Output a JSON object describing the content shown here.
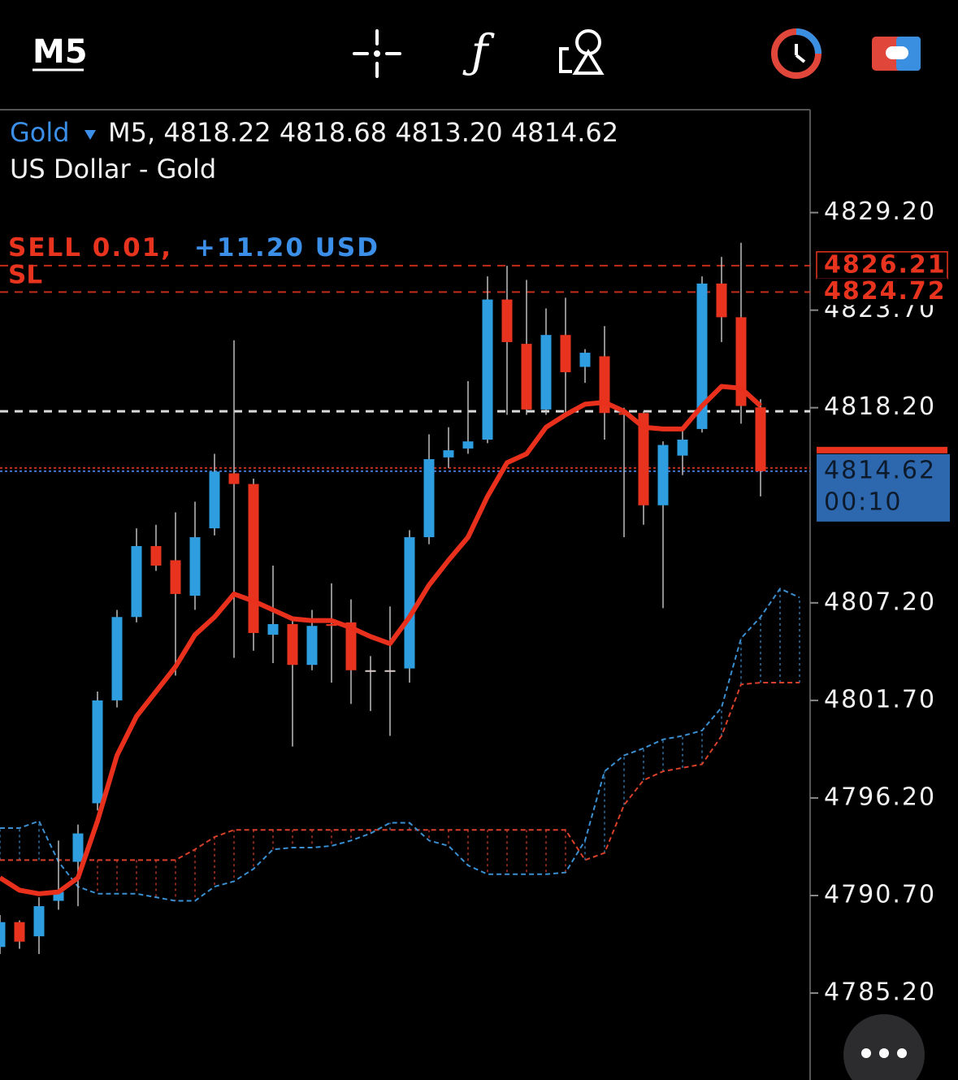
{
  "toolbar": {
    "timeframe": "M5"
  },
  "chart_data": {
    "type": "candlestick",
    "title": "Gold",
    "subtitle": "M5, 4818.22 4818.68 4813.20 4814.62",
    "description": "US Dollar - Gold",
    "categories": [
      null,
      null,
      null,
      null,
      null,
      null,
      null,
      null,
      null,
      null,
      null,
      null,
      null,
      null,
      null,
      null,
      null,
      null,
      null,
      null,
      null,
      null,
      null,
      null,
      null,
      null,
      null,
      null,
      null,
      null,
      null,
      null,
      null,
      null,
      null,
      null,
      null,
      null,
      null,
      null,
      null,
      null
    ],
    "open": [
      4787.8,
      4789.2,
      4788.4,
      4790.4,
      4792.6,
      4795.9,
      4801.7,
      4806.4,
      4810.4,
      4809.6,
      4807.6,
      4811.4,
      4814.5,
      4813.9,
      4805.4,
      4806.0,
      4803.7,
      4806.0,
      4806.1,
      4803.4,
      4803.4,
      4803.5,
      4810.9,
      4815.4,
      4815.9,
      4816.4,
      4824.3,
      4821.8,
      4818.1,
      4822.3,
      4820.5,
      4821.1,
      4817.9,
      4817.9,
      4812.7,
      4815.5,
      4817.0,
      4825.2,
      4823.3,
      4818.22,
      null,
      null
    ],
    "high": [
      4789.6,
      4789.3,
      4790.6,
      4793.8,
      4794.7,
      4802.2,
      4806.8,
      4811.4,
      4811.6,
      4812.3,
      4812.9,
      4815.6,
      4822.0,
      4814.2,
      4809.3,
      4806.4,
      4806.8,
      4808.3,
      4807.4,
      4804.2,
      4807.0,
      4811.3,
      4816.7,
      4817.1,
      4819.7,
      4825.6,
      4826.2,
      4825.4,
      4823.8,
      4824.4,
      4821.5,
      4822.8,
      4818.2,
      4818.0,
      4816.3,
      4816.9,
      4825.6,
      4826.7,
      4827.5,
      4818.68,
      null,
      null
    ],
    "low": [
      4787.4,
      4787.7,
      4787.4,
      4789.9,
      4790.1,
      4795.5,
      4801.3,
      4806.1,
      4809.0,
      4803.1,
      4806.8,
      4811.0,
      4804.1,
      4804.5,
      4803.8,
      4799.1,
      4803.4,
      4802.7,
      4801.5,
      4801.1,
      4799.7,
      4802.7,
      4810.5,
      4814.8,
      4815.6,
      4816.2,
      4817.8,
      4817.8,
      4817.8,
      4817.8,
      4819.6,
      4816.4,
      4810.9,
      4811.6,
      4806.9,
      4814.4,
      4816.8,
      4821.9,
      4817.3,
      4813.2,
      null,
      null
    ],
    "close": [
      4789.2,
      4788.1,
      4790.1,
      4790.9,
      4794.2,
      4801.7,
      4806.4,
      4810.4,
      4809.3,
      4807.7,
      4810.9,
      4814.6,
      4813.9,
      4805.5,
      4806.0,
      4803.7,
      4805.9,
      4805.9,
      4803.4,
      4803.4,
      4803.4,
      4810.9,
      4815.3,
      4815.8,
      4816.3,
      4824.3,
      4821.9,
      4818.1,
      4822.3,
      4820.2,
      4821.3,
      4817.9,
      4817.8,
      4812.7,
      4816.1,
      4816.4,
      4825.2,
      4823.3,
      4818.3,
      4814.62,
      null,
      null
    ],
    "up_color": "#2e9ee0",
    "down_color": "#e8341f",
    "flat_color": "#d8c8c8",
    "overlays": [
      {
        "color": "#e8301c",
        "width": 6,
        "dash": false,
        "values": [
          4791.7,
          4791.0,
          4790.8,
          4790.9,
          4791.7,
          4794.9,
          4798.6,
          4800.8,
          4802.2,
          4803.6,
          4805.4,
          4806.4,
          4807.7,
          4807.3,
          4806.8,
          4806.3,
          4806.2,
          4806.2,
          4805.8,
          4805.3,
          4804.9,
          4806.4,
          4808.2,
          4809.6,
          4810.9,
          4813.2,
          4815.1,
          4815.6,
          4817.1,
          4817.8,
          4818.4,
          4818.5,
          4818.0,
          4817.1,
          4817.0,
          4817.0,
          4818.3,
          4819.4,
          4819.3,
          4818.3,
          null,
          null
        ]
      },
      {
        "color": "#d9402a",
        "width": 2,
        "dash": true,
        "values": [
          4792.7,
          4792.7,
          4792.7,
          4792.7,
          4792.7,
          4792.7,
          4792.7,
          4792.7,
          4792.7,
          4792.7,
          4793.3,
          4794.0,
          4794.4,
          4794.4,
          4794.4,
          4794.4,
          4794.4,
          4794.4,
          4794.4,
          4794.4,
          4794.4,
          4794.4,
          4794.4,
          4794.4,
          4794.4,
          4794.4,
          4794.4,
          4794.4,
          4794.4,
          4794.4,
          4792.7,
          4793.1,
          4795.8,
          4797.2,
          4797.7,
          4797.9,
          4798.1,
          4799.7,
          4802.6,
          4802.7,
          4802.7,
          4802.7
        ]
      },
      {
        "color": "#3b8fd0",
        "width": 2,
        "dash": true,
        "values": [
          4794.5,
          4794.5,
          4794.9,
          4792.6,
          4791.2,
          4790.8,
          4790.8,
          4790.8,
          4790.6,
          4790.4,
          4790.4,
          4791.2,
          4791.5,
          4792.2,
          4793.3,
          4793.4,
          4793.4,
          4793.5,
          4793.8,
          4794.2,
          4794.8,
          4794.8,
          4793.8,
          4793.5,
          4792.4,
          4791.9,
          4791.9,
          4791.9,
          4791.9,
          4792.0,
          4793.8,
          4797.7,
          4798.6,
          4799.0,
          4799.5,
          4799.7,
          4800.0,
          4801.3,
          4805.2,
          4806.4,
          4808.0,
          4807.5
        ]
      }
    ],
    "ylim": [
      4780.3,
      4835.0
    ],
    "yticks": [
      {
        "value": 4829.2,
        "label": "4829.20"
      },
      {
        "value": 4823.7,
        "label": "4823.70"
      },
      {
        "value": 4818.2,
        "label": "4818.20"
      },
      {
        "value": 4807.2,
        "label": "4807.20"
      },
      {
        "value": 4801.7,
        "label": "4801.70"
      },
      {
        "value": 4796.2,
        "label": "4796.20"
      },
      {
        "value": 4790.7,
        "label": "4790.70"
      },
      {
        "value": 4785.2,
        "label": "4785.20"
      }
    ],
    "price_lines": [
      {
        "value": 4826.21,
        "color": "#e8341f",
        "style": "dashed",
        "show_label": true,
        "boxed": true
      },
      {
        "value": 4824.72,
        "color": "#e8341f",
        "style": "dashed",
        "show_label": true,
        "boxed": false
      },
      {
        "value": 4818.0,
        "color": "#ffffff",
        "style": "dashed",
        "show_label": false,
        "boxed": false
      },
      {
        "value": 4814.8,
        "color": "#e8341f",
        "style": "dotted",
        "show_label": false,
        "boxed": false
      }
    ],
    "last_price": {
      "value": 4814.62,
      "timer": "00:10",
      "color": "#2d67ad",
      "line_color": "#4a72c8"
    },
    "position": {
      "side": "SELL 0.01,",
      "profit": "+11.20 USD",
      "stop": "SL"
    }
  }
}
